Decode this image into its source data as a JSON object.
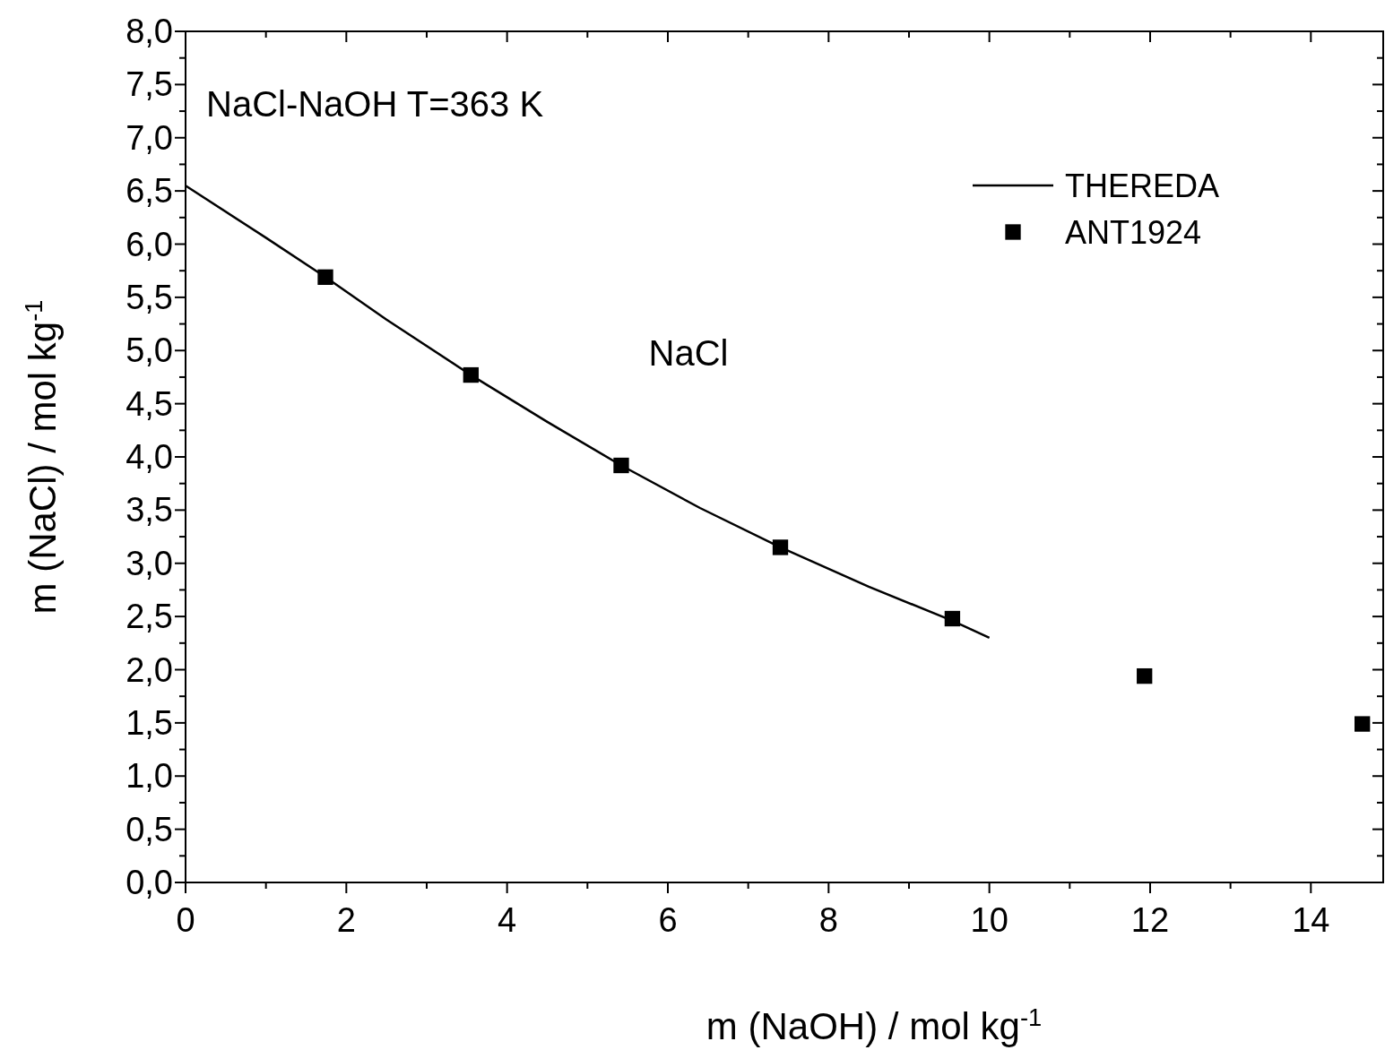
{
  "chart_data": {
    "type": "line",
    "xlabel": "m (NaOH) / mol kg$^{-1}$",
    "ylabel": "m (NaCl) / mol kg$^{-1}$",
    "xlim": [
      0,
      14.9
    ],
    "ylim": [
      0,
      8
    ],
    "xticks": [
      0,
      {
        "value": 1,
        "label": null
      },
      2,
      {
        "value": 3,
        "label": null
      },
      4,
      {
        "value": 5,
        "label": null
      },
      6,
      {
        "value": 7,
        "label": null
      },
      8,
      {
        "value": 9,
        "label": null
      },
      10,
      {
        "value": 11,
        "label": null
      },
      12,
      {
        "value": 13,
        "label": null
      },
      14
    ],
    "yticks": [
      {
        "value": 0,
        "label": "0,0"
      },
      {
        "value": 0.25,
        "label": null
      },
      {
        "value": 0.5,
        "label": "0,5"
      },
      {
        "value": 0.75,
        "label": null
      },
      {
        "value": 1,
        "label": "1,0"
      },
      {
        "value": 1.25,
        "label": null
      },
      {
        "value": 1.5,
        "label": "1,5"
      },
      {
        "value": 1.75,
        "label": null
      },
      {
        "value": 2,
        "label": "2,0"
      },
      {
        "value": 2.25,
        "label": null
      },
      {
        "value": 2.5,
        "label": "2,5"
      },
      {
        "value": 2.75,
        "label": null
      },
      {
        "value": 3,
        "label": "3,0"
      },
      {
        "value": 3.25,
        "label": null
      },
      {
        "value": 3.5,
        "label": "3,5"
      },
      {
        "value": 3.75,
        "label": null
      },
      {
        "value": 4,
        "label": "4,0"
      },
      {
        "value": 4.25,
        "label": null
      },
      {
        "value": 4.5,
        "label": "4,5"
      },
      {
        "value": 4.75,
        "label": null
      },
      {
        "value": 5,
        "label": "5,0"
      },
      {
        "value": 5.25,
        "label": null
      },
      {
        "value": 5.5,
        "label": "5,5"
      },
      {
        "value": 5.75,
        "label": null
      },
      {
        "value": 6,
        "label": "6,0"
      },
      {
        "value": 6.25,
        "label": null
      },
      {
        "value": 6.5,
        "label": "6,5"
      },
      {
        "value": 6.75,
        "label": null
      },
      {
        "value": 7,
        "label": "7,0"
      },
      {
        "value": 7.25,
        "label": null
      },
      {
        "value": 7.5,
        "label": "7,5"
      },
      {
        "value": 7.75,
        "label": null
      },
      {
        "value": 8,
        "label": "8,0"
      }
    ],
    "grid": false,
    "legend": "top right",
    "annotations": [
      "NaCl-NaOH T=363 K",
      "NaCl"
    ],
    "series": [
      {
        "name": "THEREDA",
        "color": "#000000",
        "marker": "none",
        "x": [
          0,
          1,
          1.74,
          2.5,
          3.55,
          4.5,
          5.42,
          6.4,
          7.4,
          8.5,
          9.54,
          10
        ],
        "values": [
          6.55,
          6.06,
          5.69,
          5.29,
          4.77,
          4.33,
          3.92,
          3.52,
          3.15,
          2.78,
          2.46,
          2.3
        ]
      },
      {
        "name": "ANT1924",
        "type": "scatter",
        "color": "#000000",
        "marker": "square",
        "x": [
          1.74,
          3.55,
          5.42,
          7.4,
          9.54,
          11.93,
          14.64
        ],
        "values": [
          5.69,
          4.77,
          3.92,
          3.15,
          2.48,
          1.94,
          1.49
        ]
      }
    ]
  }
}
